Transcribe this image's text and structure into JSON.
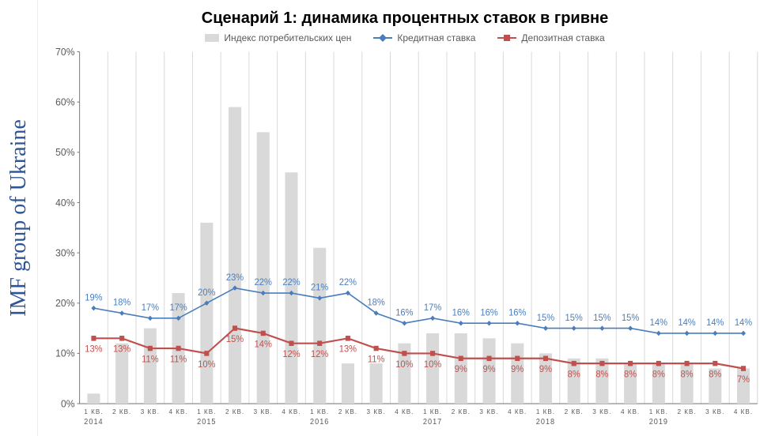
{
  "sidebar": {
    "brand": "IMF group of Ukraine",
    "color": "#2e5496"
  },
  "title": "Сценарий 1: динамика процентных ставок в гривне",
  "legend": {
    "cpi": "Индекс потребительских цен",
    "credit": "Кредитная ставка",
    "deposit": "Депозитная ставка"
  },
  "chart": {
    "type": "combo-bar-line",
    "background_color": "#ffffff",
    "grid_color": "#d9d9d9",
    "axis_color": "#808080",
    "ylim": [
      0,
      70
    ],
    "ytick_step": 10,
    "ytick_suffix": "%",
    "categories": {
      "quarters": [
        "1 КВ.",
        "2 КВ.",
        "3 КВ.",
        "4 КВ.",
        "1 КВ.",
        "2 КВ.",
        "3 КВ.",
        "4 КВ.",
        "1 КВ.",
        "2 КВ.",
        "3 КВ.",
        "4 КВ.",
        "1 КВ.",
        "2 КВ.",
        "3 КВ.",
        "4 КВ.",
        "1 КВ.",
        "2 КВ.",
        "3 КВ.",
        "4 КВ.",
        "1 КВ.",
        "2 КВ.",
        "3 КВ.",
        "4 КВ."
      ],
      "years": [
        "2014",
        "",
        "",
        "",
        "2015",
        "",
        "",
        "",
        "2016",
        "",
        "",
        "",
        "2017",
        "",
        "",
        "",
        "2018",
        "",
        "",
        "",
        "2019",
        "",
        "",
        ""
      ]
    },
    "series": {
      "cpi": {
        "type": "bar",
        "color": "#d9d9d9",
        "bar_width": 0.45,
        "values": [
          2,
          12,
          15,
          22,
          36,
          59,
          54,
          46,
          31,
          8,
          8,
          12,
          14,
          14,
          13,
          12,
          10,
          9,
          9,
          8,
          8,
          8,
          7,
          7
        ]
      },
      "credit": {
        "type": "line",
        "color": "#4a7ebb",
        "line_width": 1.5,
        "marker": "diamond",
        "marker_size": 6,
        "values": [
          19,
          18,
          17,
          17,
          20,
          23,
          22,
          22,
          21,
          22,
          18,
          16,
          17,
          16,
          16,
          16,
          15,
          15,
          15,
          15,
          14,
          14,
          14,
          14
        ],
        "labels": [
          "19%",
          "18%",
          "17%",
          "17%",
          "20%",
          "23%",
          "22%",
          "22%",
          "21%",
          "22%",
          "18%",
          "16%",
          "17%",
          "16%",
          "16%",
          "16%",
          "15%",
          "15%",
          "15%",
          "15%",
          "14%",
          "14%",
          "14%",
          "14%"
        ]
      },
      "deposit": {
        "type": "line",
        "color": "#c0504d",
        "line_width": 2,
        "marker": "square",
        "marker_size": 6,
        "values": [
          13,
          13,
          11,
          11,
          10,
          15,
          14,
          12,
          12,
          13,
          11,
          10,
          10,
          9,
          9,
          9,
          9,
          8,
          8,
          8,
          8,
          8,
          8,
          7
        ],
        "labels": [
          "13%",
          "13%",
          "11%",
          "11%",
          "10%",
          "15%",
          "14%",
          "12%",
          "12%",
          "13%",
          "11%",
          "10%",
          "10%",
          "9%",
          "9%",
          "9%",
          "9%",
          "8%",
          "8%",
          "8%",
          "8%",
          "8%",
          "8%",
          "7%"
        ]
      }
    },
    "typography": {
      "title_fontsize": 20,
      "legend_fontsize": 12,
      "axis_fontsize": 12,
      "datalabel_fontsize": 11,
      "xtick_fontsize": 8
    }
  }
}
